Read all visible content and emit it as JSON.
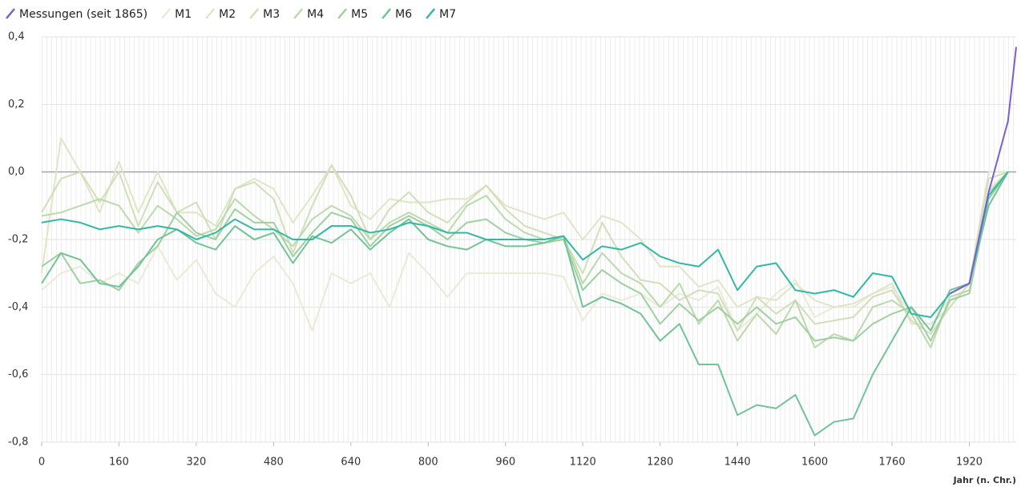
{
  "chart_data": {
    "type": "line",
    "x_label": "Jahr (n. Chr.)",
    "x": [
      0,
      40,
      80,
      120,
      160,
      200,
      240,
      280,
      320,
      360,
      400,
      440,
      480,
      520,
      560,
      600,
      640,
      680,
      720,
      760,
      800,
      840,
      880,
      920,
      960,
      1000,
      1040,
      1080,
      1120,
      1160,
      1200,
      1240,
      1280,
      1320,
      1360,
      1400,
      1440,
      1480,
      1520,
      1560,
      1600,
      1640,
      1680,
      1720,
      1760,
      1800,
      1840,
      1880,
      1920,
      1960,
      2000,
      2017
    ],
    "xlim": [
      0,
      2017
    ],
    "xticks": [
      0,
      160,
      320,
      480,
      640,
      800,
      960,
      1120,
      1280,
      1440,
      1600,
      1760,
      1920
    ],
    "ylim": [
      -0.8,
      0.4
    ],
    "yticks": [
      {
        "value": 0.4,
        "label": "0,4"
      },
      {
        "value": 0.2,
        "label": "0,2"
      },
      {
        "value": 0,
        "label": "0,0"
      },
      {
        "value": -0.2,
        "label": "-0,2"
      },
      {
        "value": -0.4,
        "label": "-0,4"
      },
      {
        "value": -0.6,
        "label": "-0,6"
      },
      {
        "value": -0.8,
        "label": "-0,8"
      }
    ],
    "grid": true,
    "series": [
      {
        "name": "Messungen (seit 1865)",
        "color": "#7b5fd1",
        "values": [
          null,
          null,
          null,
          null,
          null,
          null,
          null,
          null,
          null,
          null,
          null,
          null,
          null,
          null,
          null,
          null,
          null,
          null,
          null,
          null,
          null,
          null,
          null,
          null,
          null,
          null,
          null,
          null,
          null,
          null,
          null,
          null,
          null,
          null,
          null,
          null,
          null,
          null,
          null,
          null,
          null,
          null,
          null,
          null,
          null,
          null,
          null,
          -0.36,
          -0.33,
          -0.06,
          0.15,
          0.37
        ]
      },
      {
        "name": "M1",
        "color": "#ebe9d8",
        "values": [
          -0.35,
          -0.3,
          -0.28,
          -0.33,
          -0.3,
          -0.33,
          -0.22,
          -0.32,
          -0.26,
          -0.36,
          -0.4,
          -0.3,
          -0.25,
          -0.33,
          -0.47,
          -0.3,
          -0.33,
          -0.3,
          -0.4,
          -0.24,
          -0.3,
          -0.37,
          -0.3,
          -0.3,
          -0.3,
          -0.3,
          -0.3,
          -0.31,
          -0.44,
          -0.36,
          -0.38,
          -0.36,
          -0.4,
          -0.36,
          -0.38,
          -0.34,
          -0.47,
          -0.42,
          -0.36,
          -0.32,
          -0.43,
          -0.4,
          -0.4,
          -0.36,
          -0.34,
          -0.42,
          -0.43,
          -0.38,
          -0.35,
          -0.05,
          0.0,
          null
        ]
      },
      {
        "name": "M2",
        "color": "#e0e5c8",
        "values": [
          -0.3,
          0.1,
          0.0,
          -0.12,
          0.03,
          -0.12,
          0.0,
          -0.12,
          -0.12,
          -0.16,
          -0.05,
          -0.02,
          -0.05,
          -0.15,
          -0.07,
          0.02,
          -0.1,
          -0.14,
          -0.08,
          -0.09,
          -0.09,
          -0.08,
          -0.08,
          -0.04,
          -0.1,
          -0.12,
          -0.14,
          -0.12,
          -0.2,
          -0.13,
          -0.15,
          -0.2,
          -0.28,
          -0.28,
          -0.34,
          -0.32,
          -0.4,
          -0.37,
          -0.38,
          -0.33,
          -0.38,
          -0.4,
          -0.39,
          -0.36,
          -0.33,
          -0.45,
          -0.45,
          -0.4,
          -0.33,
          0.0,
          0.0,
          null
        ]
      },
      {
        "name": "M3",
        "color": "#cfe0b8",
        "values": [
          -0.12,
          -0.02,
          0.0,
          -0.09,
          0.0,
          -0.16,
          -0.03,
          -0.12,
          -0.09,
          -0.2,
          -0.05,
          -0.03,
          -0.08,
          -0.24,
          -0.1,
          0.02,
          -0.07,
          -0.2,
          -0.11,
          -0.06,
          -0.12,
          -0.15,
          -0.09,
          -0.04,
          -0.11,
          -0.16,
          -0.18,
          -0.2,
          -0.3,
          -0.15,
          -0.25,
          -0.32,
          -0.33,
          -0.38,
          -0.35,
          -0.36,
          -0.47,
          -0.37,
          -0.42,
          -0.38,
          -0.45,
          -0.44,
          -0.43,
          -0.37,
          -0.35,
          -0.44,
          -0.48,
          -0.4,
          -0.33,
          -0.02,
          0.0,
          null
        ]
      },
      {
        "name": "M4",
        "color": "#bbdaab",
        "values": [
          -0.13,
          -0.12,
          -0.1,
          -0.08,
          -0.1,
          -0.18,
          -0.1,
          -0.14,
          -0.19,
          -0.17,
          -0.08,
          -0.13,
          -0.17,
          -0.22,
          -0.14,
          -0.1,
          -0.13,
          -0.2,
          -0.15,
          -0.12,
          -0.15,
          -0.18,
          -0.1,
          -0.07,
          -0.14,
          -0.18,
          -0.2,
          -0.19,
          -0.33,
          -0.24,
          -0.3,
          -0.33,
          -0.4,
          -0.33,
          -0.45,
          -0.38,
          -0.5,
          -0.42,
          -0.48,
          -0.38,
          -0.52,
          -0.48,
          -0.5,
          -0.4,
          -0.38,
          -0.42,
          -0.52,
          -0.37,
          -0.35,
          -0.06,
          0.0,
          null
        ]
      },
      {
        "name": "M5",
        "color": "#9fd0a1",
        "values": [
          -0.28,
          -0.24,
          -0.33,
          -0.32,
          -0.35,
          -0.27,
          -0.22,
          -0.12,
          -0.18,
          -0.2,
          -0.11,
          -0.15,
          -0.15,
          -0.25,
          -0.18,
          -0.12,
          -0.14,
          -0.22,
          -0.16,
          -0.13,
          -0.16,
          -0.2,
          -0.15,
          -0.14,
          -0.18,
          -0.2,
          -0.21,
          -0.2,
          -0.35,
          -0.29,
          -0.33,
          -0.36,
          -0.45,
          -0.39,
          -0.44,
          -0.4,
          -0.45,
          -0.4,
          -0.45,
          -0.43,
          -0.5,
          -0.49,
          -0.5,
          -0.45,
          -0.42,
          -0.4,
          -0.5,
          -0.38,
          -0.36,
          -0.08,
          0.0,
          null
        ]
      },
      {
        "name": "M6",
        "color": "#72c496",
        "values": [
          -0.33,
          -0.24,
          -0.26,
          -0.33,
          -0.34,
          -0.28,
          -0.2,
          -0.17,
          -0.21,
          -0.23,
          -0.16,
          -0.2,
          -0.18,
          -0.27,
          -0.19,
          -0.21,
          -0.17,
          -0.23,
          -0.18,
          -0.14,
          -0.2,
          -0.22,
          -0.23,
          -0.2,
          -0.22,
          -0.22,
          -0.21,
          -0.19,
          -0.4,
          -0.37,
          -0.39,
          -0.42,
          -0.5,
          -0.45,
          -0.57,
          -0.57,
          -0.72,
          -0.69,
          -0.7,
          -0.66,
          -0.78,
          -0.74,
          -0.73,
          -0.6,
          -0.5,
          -0.4,
          -0.47,
          -0.35,
          -0.33,
          -0.1,
          0.0,
          null
        ]
      },
      {
        "name": "M7",
        "color": "#33b8a5",
        "values": [
          -0.15,
          -0.14,
          -0.15,
          -0.17,
          -0.16,
          -0.17,
          -0.16,
          -0.17,
          -0.2,
          -0.18,
          -0.14,
          -0.17,
          -0.17,
          -0.2,
          -0.2,
          -0.16,
          -0.16,
          -0.18,
          -0.17,
          -0.15,
          -0.16,
          -0.18,
          -0.18,
          -0.2,
          -0.2,
          -0.2,
          -0.2,
          -0.19,
          -0.26,
          -0.22,
          -0.23,
          -0.21,
          -0.25,
          -0.27,
          -0.28,
          -0.23,
          -0.35,
          -0.28,
          -0.27,
          -0.35,
          -0.36,
          -0.35,
          -0.37,
          -0.3,
          -0.31,
          -0.42,
          -0.43,
          -0.36,
          -0.33,
          -0.07,
          0.0,
          null
        ]
      }
    ]
  }
}
